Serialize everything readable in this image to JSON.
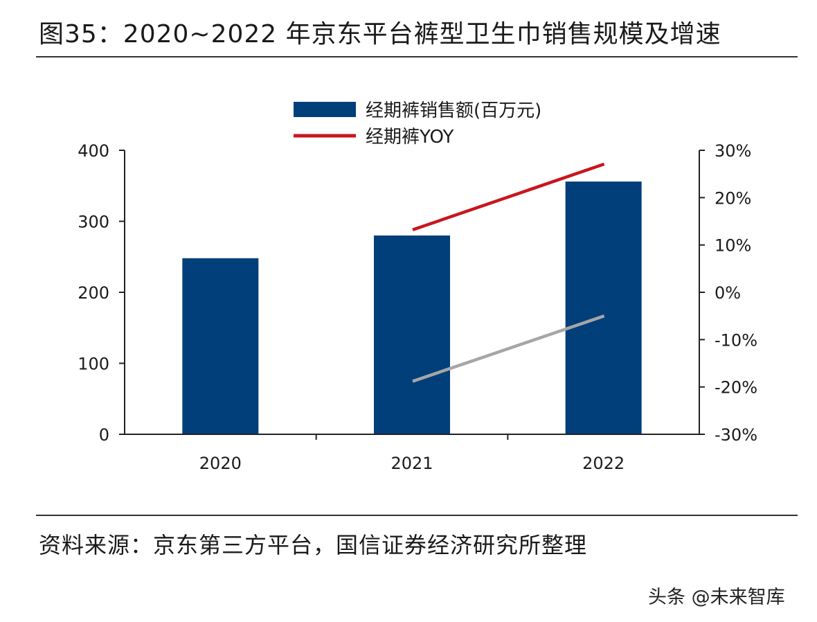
{
  "title": "图35：2020~2022 年京东平台裤型卫生巾销售规模及增速",
  "source": "资料来源：京东第三方平台，国信证券经济研究所整理",
  "watermark": "头条 @未来智库",
  "colors": {
    "bar": "#003F7A",
    "yoy_line": "#C8161D",
    "gray_line": "#A6A6A6",
    "axis": "#222222"
  },
  "chart_data": {
    "type": "bar",
    "categories": [
      "2020",
      "2021",
      "2022"
    ],
    "series": [
      {
        "name": "经期裤销售额(百万元)",
        "type": "bar",
        "axis": "left",
        "values": [
          248,
          280,
          356
        ]
      },
      {
        "name": "经期裤YOY",
        "type": "line",
        "axis": "right",
        "values": [
          null,
          13.2,
          27.1
        ]
      },
      {
        "type": "line",
        "axis": "right",
        "values": [
          null,
          -18.8,
          -5.0
        ]
      }
    ],
    "y_left": {
      "lim": [
        0,
        400
      ],
      "ticks": [
        0,
        100,
        200,
        300,
        400
      ],
      "tick_labels": [
        "0",
        "100",
        "200",
        "300",
        "400"
      ]
    },
    "y_right": {
      "lim": [
        -30,
        30
      ],
      "ticks": [
        -30,
        -20,
        -10,
        0,
        10,
        20,
        30
      ],
      "tick_labels": [
        "-30%",
        "-20%",
        "-10%",
        "0%",
        "10%",
        "20%",
        "30%"
      ]
    },
    "grid": false,
    "legend_position": "top-center"
  }
}
